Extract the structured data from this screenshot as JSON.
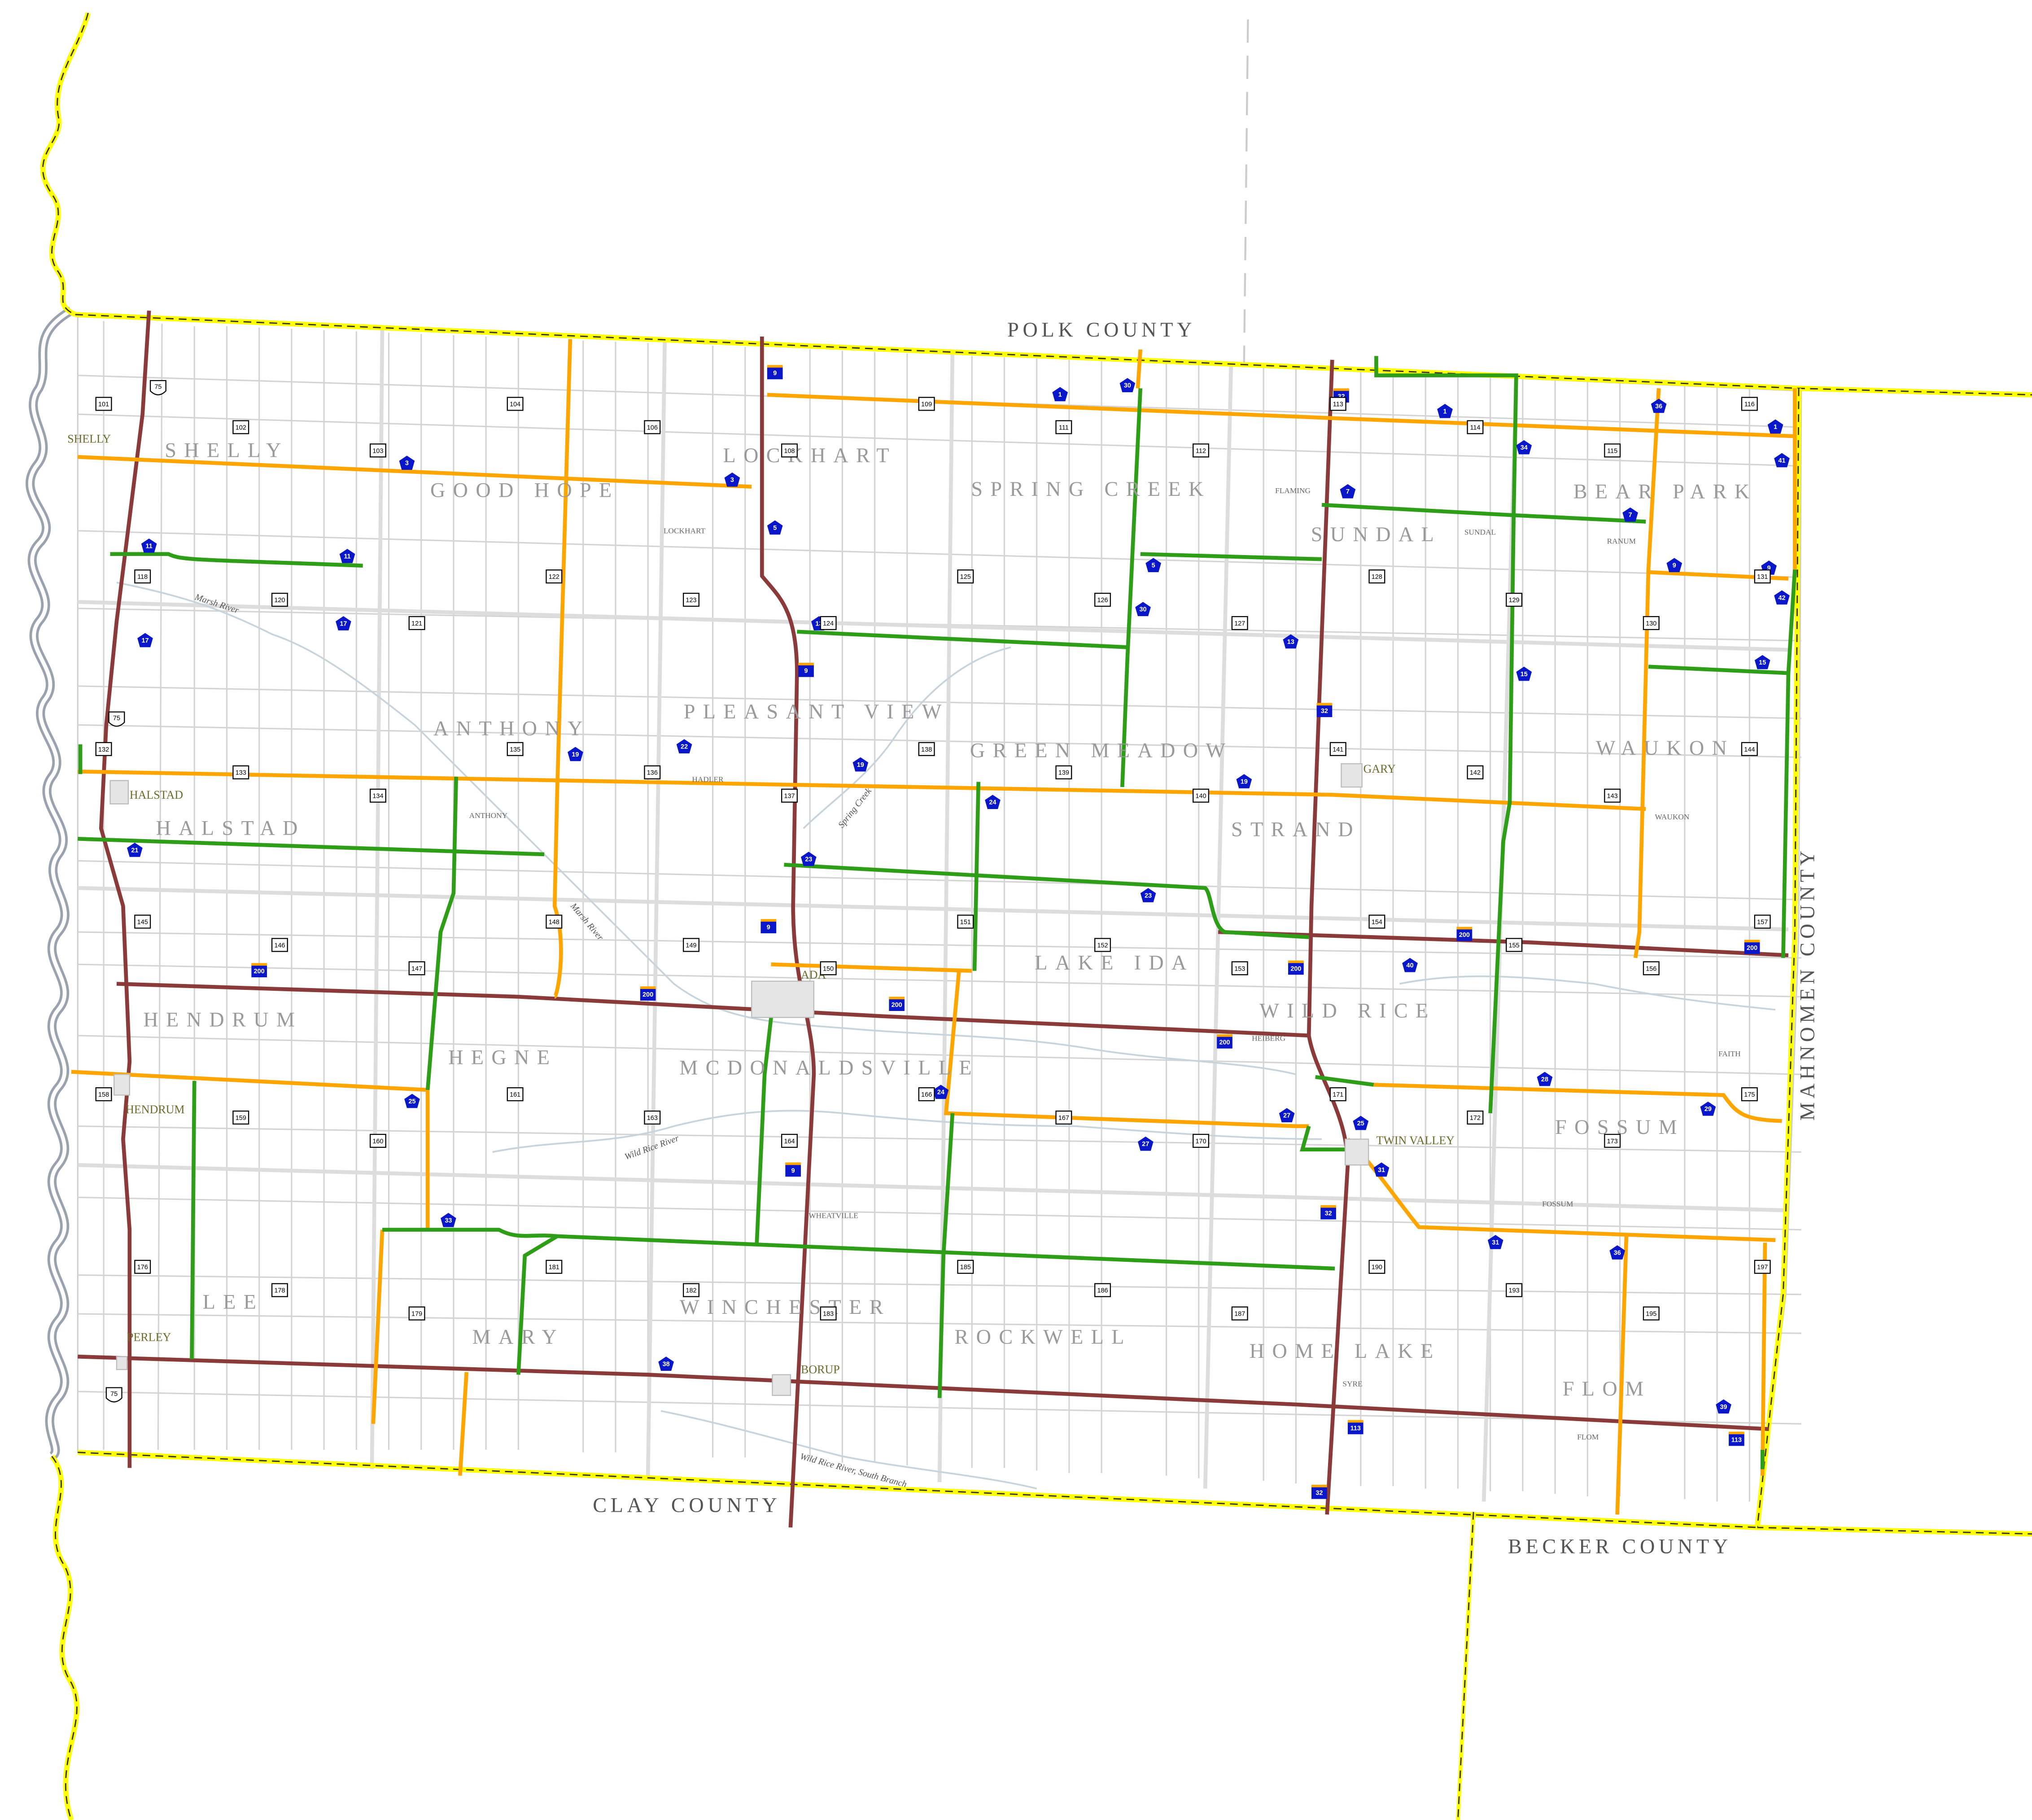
{
  "counties": {
    "north": "POLK COUNTY",
    "south": "CLAY COUNTY",
    "southeast": "BECKER COUNTY",
    "east": "MAHNOMEN COUNTY"
  },
  "townships": [
    "SHELLY",
    "GOOD HOPE",
    "LOCKHART",
    "SPRING CREEK",
    "SUNDAL",
    "BEAR PARK",
    "HALSTAD",
    "ANTHONY",
    "PLEASANT VIEW",
    "GREEN MEADOW",
    "STRAND",
    "WAUKON",
    "HENDRUM",
    "HEGNE",
    "MCDONALDSVILLE",
    "LAKE IDA",
    "WILD RICE",
    "FOSSUM",
    "LEE",
    "MARY",
    "WINCHESTER",
    "ROCKWELL",
    "HOME LAKE",
    "FLOM"
  ],
  "cities": [
    "SHELLY",
    "HALSTAD",
    "HENDRUM",
    "PERLEY",
    "ADA",
    "BORUP",
    "GARY",
    "TWIN VALLEY"
  ],
  "places": [
    "LOCKHART",
    "HADLER",
    "ANTHONY",
    "FLAMING",
    "SUNDAL",
    "RANUM",
    "WAUKON",
    "HEIBERG",
    "FAITH",
    "WHEATVILLE",
    "FOSSUM",
    "SYRE",
    "FLOM"
  ],
  "rivers": [
    "Marsh River",
    "Marsh River",
    "Spring Creek",
    "Wild Rice River",
    "Wild Rice River, South Branch"
  ],
  "routes": {
    "us": [
      "75",
      "75",
      "75"
    ],
    "state": [
      "9",
      "9",
      "9",
      "9",
      "200",
      "200",
      "200",
      "200",
      "200",
      "200",
      "200",
      "32",
      "32",
      "32",
      "32",
      "113",
      "113"
    ],
    "csah": [
      "1",
      "1",
      "1",
      "3",
      "3",
      "5",
      "5",
      "7",
      "7",
      "9",
      "9",
      "11",
      "11",
      "13",
      "13",
      "15",
      "15",
      "17",
      "17",
      "19",
      "19",
      "19",
      "21",
      "22",
      "23",
      "23",
      "24",
      "24",
      "25",
      "25",
      "27",
      "27",
      "28",
      "29",
      "30",
      "30",
      "31",
      "31",
      "33",
      "34",
      "36",
      "36",
      "38",
      "39",
      "40",
      "41",
      "42"
    ],
    "county_road": [
      "101",
      "102",
      "103",
      "104",
      "106",
      "108",
      "109",
      "111",
      "112",
      "113",
      "114",
      "115",
      "116",
      "118",
      "120",
      "121",
      "122",
      "123",
      "124",
      "125",
      "126",
      "127",
      "128",
      "129",
      "130",
      "131",
      "132",
      "133",
      "134",
      "135",
      "136",
      "137",
      "138",
      "139",
      "140",
      "141",
      "142",
      "143",
      "144",
      "145",
      "146",
      "147",
      "148",
      "149",
      "150",
      "151",
      "152",
      "153",
      "154",
      "155",
      "156",
      "157",
      "158",
      "159",
      "160",
      "161",
      "163",
      "164",
      "166",
      "167",
      "170",
      "171",
      "172",
      "173",
      "175",
      "176",
      "178",
      "179",
      "181",
      "182",
      "183",
      "185",
      "186",
      "187",
      "190",
      "193",
      "195",
      "197"
    ]
  },
  "colors": {
    "state_road": "#8b3a3a",
    "csah_paved": "#ffa500",
    "csah_gravel": "#2e9e18",
    "township_road": "#cfcfcf",
    "county_line": "#ffff00",
    "river": "#9aa3ad",
    "shield_blue": "#0a17c9"
  }
}
